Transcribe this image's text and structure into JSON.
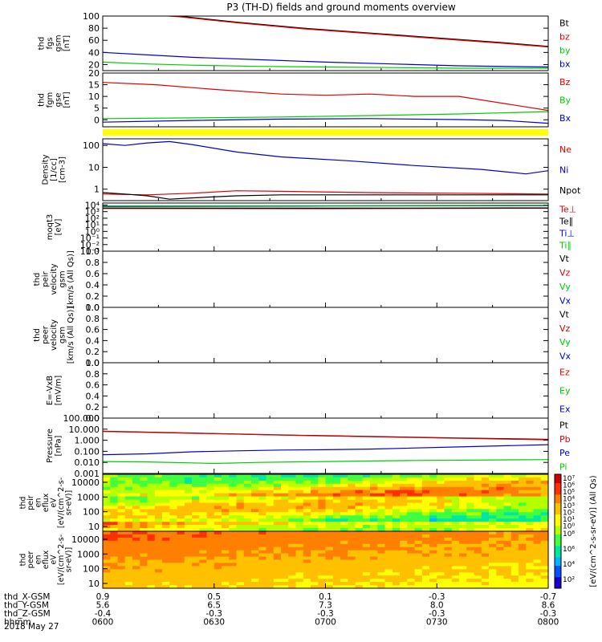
{
  "title": "P3 (TH-D) fields and ground moments overview",
  "date_label": "2018 May 27",
  "chart_data": {
    "type": "line",
    "x_ticks_hhmm": [
      "0600",
      "0630",
      "0700",
      "0730",
      "0800"
    ],
    "x_range": [
      "0600",
      "0800"
    ],
    "ephemeris": [
      {
        "label": "thd_X-GSM",
        "values": [
          "0.9",
          "0.5",
          "0.1",
          "-0.3",
          "-0.7"
        ]
      },
      {
        "label": "thd_Y-GSM",
        "values": [
          "5.6",
          "6.5",
          "7.3",
          "8.0",
          "8.6"
        ]
      },
      {
        "label": "thd_Z-GSM",
        "values": [
          "-0.4",
          "-0.3",
          "-0.3",
          "-0.3",
          "-0.3"
        ]
      },
      {
        "label": "hhmm",
        "values": []
      }
    ],
    "panels": [
      {
        "id": "fgs",
        "ylabel": [
          "thd",
          "fgs",
          "gsm",
          "[nT]"
        ],
        "scale": "linear",
        "ylim": [
          10,
          100
        ],
        "ticks": [
          {
            "v": 100,
            "t": "100"
          },
          {
            "v": 80,
            "t": "80"
          },
          {
            "v": 60,
            "t": "60"
          },
          {
            "v": 40,
            "t": "40"
          },
          {
            "v": 20,
            "t": "20"
          }
        ],
        "series": [
          {
            "name": "Bt",
            "color": "#000000",
            "points": [
              [
                0,
                108
              ],
              [
                0.17,
                100
              ],
              [
                0.3,
                90
              ],
              [
                0.45,
                80
              ],
              [
                0.6,
                72
              ],
              [
                0.75,
                64
              ],
              [
                0.9,
                56
              ],
              [
                1,
                50
              ]
            ]
          },
          {
            "name": "bz",
            "color": "#e00000",
            "points": [
              [
                0,
                107
              ],
              [
                0.17,
                99
              ],
              [
                0.3,
                89
              ],
              [
                0.45,
                79
              ],
              [
                0.6,
                71
              ],
              [
                0.75,
                63
              ],
              [
                0.9,
                55
              ],
              [
                1,
                49
              ]
            ]
          },
          {
            "name": "by",
            "color": "#00cc00",
            "points": [
              [
                0,
                24
              ],
              [
                0.1,
                21
              ],
              [
                0.2,
                19
              ],
              [
                0.35,
                17
              ],
              [
                0.5,
                16
              ],
              [
                0.65,
                15
              ],
              [
                0.8,
                14
              ],
              [
                1,
                14
              ]
            ]
          },
          {
            "name": "bx",
            "color": "#0000cc",
            "points": [
              [
                0,
                40
              ],
              [
                0.1,
                36
              ],
              [
                0.2,
                32
              ],
              [
                0.35,
                28
              ],
              [
                0.5,
                24
              ],
              [
                0.65,
                21
              ],
              [
                0.8,
                18
              ],
              [
                1,
                16
              ]
            ]
          }
        ]
      },
      {
        "id": "fgm",
        "ylabel": [
          "thd",
          "fgm",
          "gse",
          "[nT]"
        ],
        "scale": "linear",
        "ylim": [
          -3,
          20
        ],
        "ticks": [
          {
            "v": 20,
            "t": "20"
          },
          {
            "v": 15,
            "t": "15"
          },
          {
            "v": 10,
            "t": "10"
          },
          {
            "v": 5,
            "t": "5"
          },
          {
            "v": 0,
            "t": "0"
          }
        ],
        "series": [
          {
            "name": "Bz",
            "color": "#e00000",
            "points": [
              [
                0,
                16
              ],
              [
                0.12,
                15
              ],
              [
                0.25,
                13
              ],
              [
                0.4,
                11
              ],
              [
                0.5,
                10.5
              ],
              [
                0.6,
                11
              ],
              [
                0.7,
                10
              ],
              [
                0.8,
                10
              ],
              [
                0.9,
                7
              ],
              [
                1,
                4
              ]
            ]
          },
          {
            "name": "By",
            "color": "#00cc00",
            "points": [
              [
                0,
                0.5
              ],
              [
                0.2,
                0.8
              ],
              [
                0.4,
                1.2
              ],
              [
                0.6,
                1.8
              ],
              [
                0.8,
                2.5
              ],
              [
                1,
                3.5
              ]
            ]
          },
          {
            "name": "Bx",
            "color": "#0000cc",
            "points": [
              [
                0,
                -1
              ],
              [
                0.2,
                -0.3
              ],
              [
                0.4,
                0.3
              ],
              [
                0.6,
                0.5
              ],
              [
                0.8,
                0.1
              ],
              [
                0.9,
                -0.3
              ],
              [
                1,
                -1.5
              ]
            ]
          }
        ]
      },
      {
        "id": "density",
        "ylabel": [
          "Density",
          "[1/cc]",
          "[cm-3]"
        ],
        "scale": "log",
        "ylim": [
          0.3,
          200
        ],
        "ticks": [
          {
            "v": 100,
            "t": "100"
          },
          {
            "v": 10,
            "t": "10"
          },
          {
            "v": 1,
            "t": "1"
          }
        ],
        "series": [
          {
            "name": "Ne",
            "color": "#e00000",
            "points": [
              [
                0,
                0.6
              ],
              [
                0.1,
                0.55
              ],
              [
                0.2,
                0.65
              ],
              [
                0.3,
                0.85
              ],
              [
                0.4,
                0.8
              ],
              [
                0.6,
                0.7
              ],
              [
                0.8,
                0.65
              ],
              [
                1,
                0.6
              ]
            ]
          },
          {
            "name": "Ni",
            "color": "#0000cc",
            "points": [
              [
                0,
                120
              ],
              [
                0.05,
                100
              ],
              [
                0.1,
                130
              ],
              [
                0.15,
                150
              ],
              [
                0.2,
                110
              ],
              [
                0.3,
                50
              ],
              [
                0.4,
                30
              ],
              [
                0.55,
                20
              ],
              [
                0.7,
                12
              ],
              [
                0.85,
                8
              ],
              [
                0.95,
                5
              ],
              [
                1,
                7
              ]
            ]
          },
          {
            "name": "Npot",
            "color": "#000000",
            "points": [
              [
                0,
                0.7
              ],
              [
                0.05,
                0.6
              ],
              [
                0.1,
                0.5
              ],
              [
                0.15,
                0.35
              ],
              [
                0.2,
                0.4
              ],
              [
                0.3,
                0.5
              ],
              [
                0.4,
                0.55
              ],
              [
                0.55,
                0.55
              ],
              [
                0.7,
                0.55
              ],
              [
                0.85,
                0.55
              ],
              [
                1,
                0.55
              ]
            ]
          }
        ]
      },
      {
        "id": "moqt3",
        "ylabel": [
          "moqt3",
          "[eV]"
        ],
        "scale": "log",
        "ylim": [
          0.001,
          20000
        ],
        "ticks": [
          {
            "v": 10000,
            "t": "10⁴"
          },
          {
            "v": 1000,
            "t": "10³"
          },
          {
            "v": 100,
            "t": "10²"
          },
          {
            "v": 10,
            "t": "10¹"
          },
          {
            "v": 1,
            "t": "10⁰"
          },
          {
            "v": 0.1,
            "t": "10⁻¹"
          },
          {
            "v": 0.01,
            "t": "10⁻²"
          },
          {
            "v": 0.001,
            "t": "10⁻³"
          }
        ],
        "series": [
          {
            "name": "Te⊥",
            "color": "#e00000",
            "points": [
              [
                0,
                3000
              ],
              [
                0.5,
                2800
              ],
              [
                1,
                3200
              ]
            ]
          },
          {
            "name": "Te∥",
            "color": "#000000",
            "points": [
              [
                0,
                3500
              ],
              [
                0.5,
                3300
              ],
              [
                1,
                3600
              ]
            ]
          },
          {
            "name": "Ti⊥",
            "color": "#0000cc",
            "points": [
              [
                0,
                6000
              ],
              [
                0.5,
                7000
              ],
              [
                1,
                8000
              ]
            ]
          },
          {
            "name": "Ti∥",
            "color": "#00cc00",
            "points": [
              [
                0,
                7500
              ],
              [
                0.5,
                8000
              ],
              [
                1,
                9000
              ]
            ]
          }
        ]
      },
      {
        "id": "peir",
        "ylabel": [
          "thd",
          "peir",
          "velocity",
          "gsm",
          "[km/s (All Qs)]"
        ],
        "scale": "linear",
        "ylim": [
          0,
          1
        ],
        "ticks": [
          {
            "v": 1,
            "t": "1.0"
          },
          {
            "v": 0.8,
            "t": "0.8"
          },
          {
            "v": 0.6,
            "t": "0.6"
          },
          {
            "v": 0.4,
            "t": "0.4"
          },
          {
            "v": 0.2,
            "t": "0.2"
          },
          {
            "v": 0,
            "t": "0.0"
          }
        ],
        "series": [
          {
            "name": "Vt",
            "color": "#000000",
            "points": []
          },
          {
            "name": "Vz",
            "color": "#e00000",
            "points": []
          },
          {
            "name": "Vy",
            "color": "#00cc00",
            "points": []
          },
          {
            "name": "Vx",
            "color": "#0000cc",
            "points": []
          }
        ]
      },
      {
        "id": "peer",
        "ylabel": [
          "thd",
          "peer",
          "velocity",
          "gsm",
          "[km/s (All Qs)]"
        ],
        "scale": "linear",
        "ylim": [
          0,
          1
        ],
        "ticks": [
          {
            "v": 1,
            "t": "1.0"
          },
          {
            "v": 0.8,
            "t": "0.8"
          },
          {
            "v": 0.6,
            "t": "0.6"
          },
          {
            "v": 0.4,
            "t": "0.4"
          },
          {
            "v": 0.2,
            "t": "0.2"
          },
          {
            "v": 0,
            "t": "0.0"
          }
        ],
        "series": [
          {
            "name": "Vt",
            "color": "#000000",
            "points": []
          },
          {
            "name": "Vz",
            "color": "#e00000",
            "points": []
          },
          {
            "name": "Vy",
            "color": "#00cc00",
            "points": []
          },
          {
            "name": "Vx",
            "color": "#0000cc",
            "points": []
          }
        ]
      },
      {
        "id": "efield",
        "ylabel": [
          "E=-VxB",
          "[mV/m]"
        ],
        "scale": "linear",
        "ylim": [
          0,
          1
        ],
        "ticks": [
          {
            "v": 1,
            "t": "1.0"
          },
          {
            "v": 0.8,
            "t": "0.8"
          },
          {
            "v": 0.6,
            "t": "0.6"
          },
          {
            "v": 0.4,
            "t": "0.4"
          },
          {
            "v": 0.2,
            "t": "0.2"
          },
          {
            "v": 0,
            "t": "0.0"
          }
        ],
        "series": [
          {
            "name": "Ez",
            "color": "#e00000",
            "points": []
          },
          {
            "name": "Ey",
            "color": "#00cc00",
            "points": []
          },
          {
            "name": "Ex",
            "color": "#0000cc",
            "points": []
          }
        ]
      },
      {
        "id": "pressure",
        "ylabel": [
          "Pressure",
          "[nPa]"
        ],
        "scale": "log",
        "ylim": [
          0.001,
          100
        ],
        "ticks": [
          {
            "v": 100,
            "t": "100.000"
          },
          {
            "v": 10,
            "t": "10.000"
          },
          {
            "v": 1,
            "t": "1.000"
          },
          {
            "v": 0.1,
            "t": "0.100"
          },
          {
            "v": 0.01,
            "t": "0.010"
          },
          {
            "v": 0.001,
            "t": "0.001"
          }
        ],
        "series": [
          {
            "name": "Pt",
            "color": "#000000",
            "points": [
              [
                0,
                6.5
              ],
              [
                0.2,
                4.5
              ],
              [
                0.4,
                3
              ],
              [
                0.6,
                2.2
              ],
              [
                0.8,
                1.6
              ],
              [
                1,
                1.2
              ]
            ]
          },
          {
            "name": "Pb",
            "color": "#e00000",
            "points": [
              [
                0,
                6.3
              ],
              [
                0.2,
                4.3
              ],
              [
                0.4,
                2.9
              ],
              [
                0.6,
                2.1
              ],
              [
                0.8,
                1.5
              ],
              [
                1,
                1.1
              ]
            ]
          },
          {
            "name": "Pe",
            "color": "#0000cc",
            "points": [
              [
                0,
                0.05
              ],
              [
                0.1,
                0.06
              ],
              [
                0.2,
                0.09
              ],
              [
                0.3,
                0.11
              ],
              [
                0.4,
                0.13
              ],
              [
                0.5,
                0.14
              ],
              [
                0.6,
                0.16
              ],
              [
                0.8,
                0.25
              ],
              [
                1,
                0.4
              ]
            ]
          },
          {
            "name": "Pi",
            "color": "#00cc00",
            "points": [
              [
                0,
                0.012
              ],
              [
                0.1,
                0.011
              ],
              [
                0.2,
                0.009
              ],
              [
                0.25,
                0.008
              ],
              [
                0.35,
                0.01
              ],
              [
                0.5,
                0.012
              ],
              [
                0.7,
                0.015
              ],
              [
                1,
                0.018
              ]
            ]
          }
        ]
      }
    ],
    "spectrograms": [
      {
        "id": "peir_spec",
        "ylabel": [
          "thd",
          "peir",
          "en",
          "eflux",
          "eV",
          "[eV/(cm^2-s-",
          "sr-eV)]"
        ],
        "yticks": [
          "10000",
          "1000",
          "100",
          "10"
        ]
      },
      {
        "id": "peer_spec",
        "ylabel": [
          "thd",
          "peer",
          "en",
          "eflux",
          "eV",
          "[eV/(cm^2-s-",
          "sr-eV)]"
        ],
        "yticks": [
          "10000",
          "1000",
          "100",
          "10"
        ]
      }
    ],
    "colorbar": {
      "label": "[eV/(cm^2-s-sr-eV)] (All Qs)",
      "ticks_top": [
        "10⁷",
        "10⁶",
        "10⁵",
        "10⁴",
        "10³",
        "10²",
        "10¹",
        "10⁰"
      ],
      "ticks_bottom": [
        "10⁸",
        "10⁶",
        "10⁴",
        "10²"
      ]
    }
  }
}
